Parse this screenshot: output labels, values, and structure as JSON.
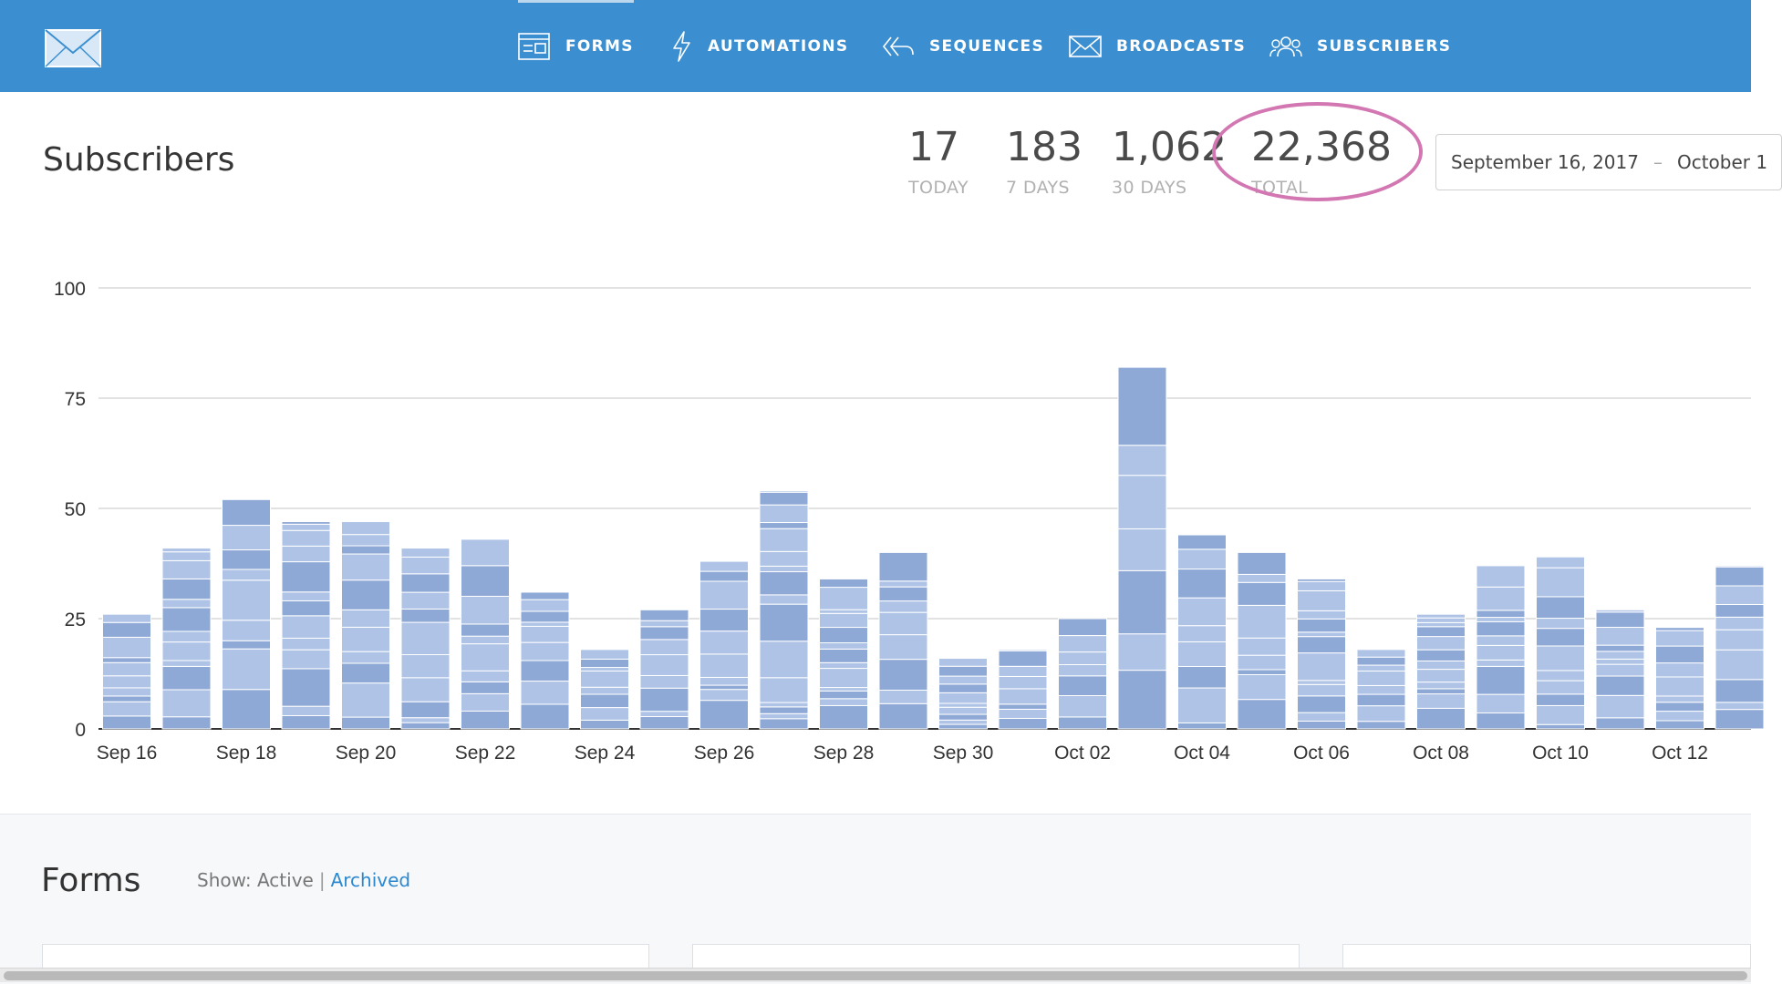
{
  "nav": {
    "items": [
      {
        "label": "FORMS",
        "icon": "forms-icon",
        "active": true
      },
      {
        "label": "AUTOMATIONS",
        "icon": "lightning-icon",
        "active": false
      },
      {
        "label": "SEQUENCES",
        "icon": "sequence-arrows-icon",
        "active": false
      },
      {
        "label": "BROADCASTS",
        "icon": "envelope-icon",
        "active": false
      },
      {
        "label": "SUBSCRIBERS",
        "icon": "users-icon",
        "active": false
      }
    ]
  },
  "header": {
    "title": "Subscribers",
    "stats": [
      {
        "value": "17",
        "label": "TODAY"
      },
      {
        "value": "183",
        "label": "7 DAYS"
      },
      {
        "value": "1,062",
        "label": "30 DAYS"
      },
      {
        "value": "22,368",
        "label": "TOTAL"
      }
    ],
    "date_range": {
      "start": "September 16, 2017",
      "separator": "–",
      "end": "October 1"
    }
  },
  "colors": {
    "topbar": "#3b8fd0",
    "bar_dark": "#8fa9d6",
    "bar_light": "#aec3e6",
    "annotation": "#d377b3",
    "link": "#2c88cf"
  },
  "chart_data": {
    "type": "bar",
    "stacked": true,
    "ylim": [
      0,
      100
    ],
    "yticks": [
      0,
      25,
      50,
      75,
      100
    ],
    "grid": true,
    "x": [
      "Sep 16",
      "Sep 17",
      "Sep 18",
      "Sep 19",
      "Sep 20",
      "Sep 21",
      "Sep 22",
      "Sep 23",
      "Sep 24",
      "Sep 25",
      "Sep 26",
      "Sep 27",
      "Sep 28",
      "Sep 29",
      "Sep 30",
      "Oct 01",
      "Oct 02",
      "Oct 03",
      "Oct 04",
      "Oct 05",
      "Oct 06",
      "Oct 07",
      "Oct 08",
      "Oct 09",
      "Oct 10",
      "Oct 11",
      "Oct 12",
      "Oct 13"
    ],
    "xtick_labels": [
      "Sep 16",
      "Sep 18",
      "Sep 20",
      "Sep 22",
      "Sep 24",
      "Sep 26",
      "Sep 28",
      "Sep 30",
      "Oct 02",
      "Oct 04",
      "Oct 06",
      "Oct 08",
      "Oct 10",
      "Oct 12"
    ],
    "totals": [
      26,
      41,
      52,
      47,
      47,
      41,
      43,
      31,
      18,
      27,
      38,
      54,
      34,
      40,
      16,
      18,
      25,
      82,
      44,
      40,
      34,
      18,
      26,
      37,
      39,
      27,
      23,
      37
    ]
  },
  "forms": {
    "title": "Forms",
    "filter_prefix": "Show:",
    "filter_active": "Active",
    "filter_separator": "|",
    "filter_archived": "Archived"
  }
}
